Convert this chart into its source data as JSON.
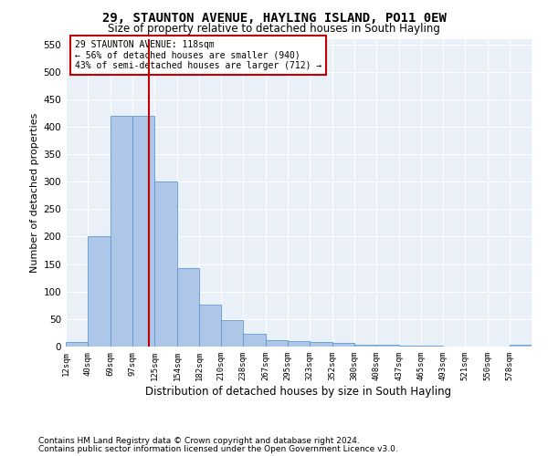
{
  "title": "29, STAUNTON AVENUE, HAYLING ISLAND, PO11 0EW",
  "subtitle": "Size of property relative to detached houses in South Hayling",
  "xlabel": "Distribution of detached houses by size in South Hayling",
  "ylabel": "Number of detached properties",
  "footnote1": "Contains HM Land Registry data © Crown copyright and database right 2024.",
  "footnote2": "Contains public sector information licensed under the Open Government Licence v3.0.",
  "annotation_title": "29 STAUNTON AVENUE: 118sqm",
  "annotation_line2": "← 56% of detached houses are smaller (940)",
  "annotation_line3": "43% of semi-detached houses are larger (712) →",
  "property_size": 118,
  "bar_categories": [
    "12sqm",
    "40sqm",
    "69sqm",
    "97sqm",
    "125sqm",
    "154sqm",
    "182sqm",
    "210sqm",
    "238sqm",
    "267sqm",
    "295sqm",
    "323sqm",
    "352sqm",
    "380sqm",
    "408sqm",
    "437sqm",
    "465sqm",
    "493sqm",
    "521sqm",
    "550sqm",
    "578sqm"
  ],
  "bar_values": [
    8,
    200,
    420,
    420,
    300,
    143,
    77,
    48,
    24,
    11,
    10,
    8,
    7,
    3,
    3,
    2,
    1,
    0,
    0,
    0,
    3
  ],
  "bin_edges": [
    12,
    40,
    69,
    97,
    125,
    154,
    182,
    210,
    238,
    267,
    295,
    323,
    352,
    380,
    408,
    437,
    465,
    493,
    521,
    550,
    578,
    606
  ],
  "bar_color": "#aec6e8",
  "bar_edge_color": "#5b9bd5",
  "vline_x": 118,
  "vline_color": "#c00000",
  "bg_color": "#eaf0f8",
  "annotation_box_color": "#c00000",
  "ylim": [
    0,
    560
  ],
  "yticks": [
    0,
    50,
    100,
    150,
    200,
    250,
    300,
    350,
    400,
    450,
    500,
    550
  ]
}
